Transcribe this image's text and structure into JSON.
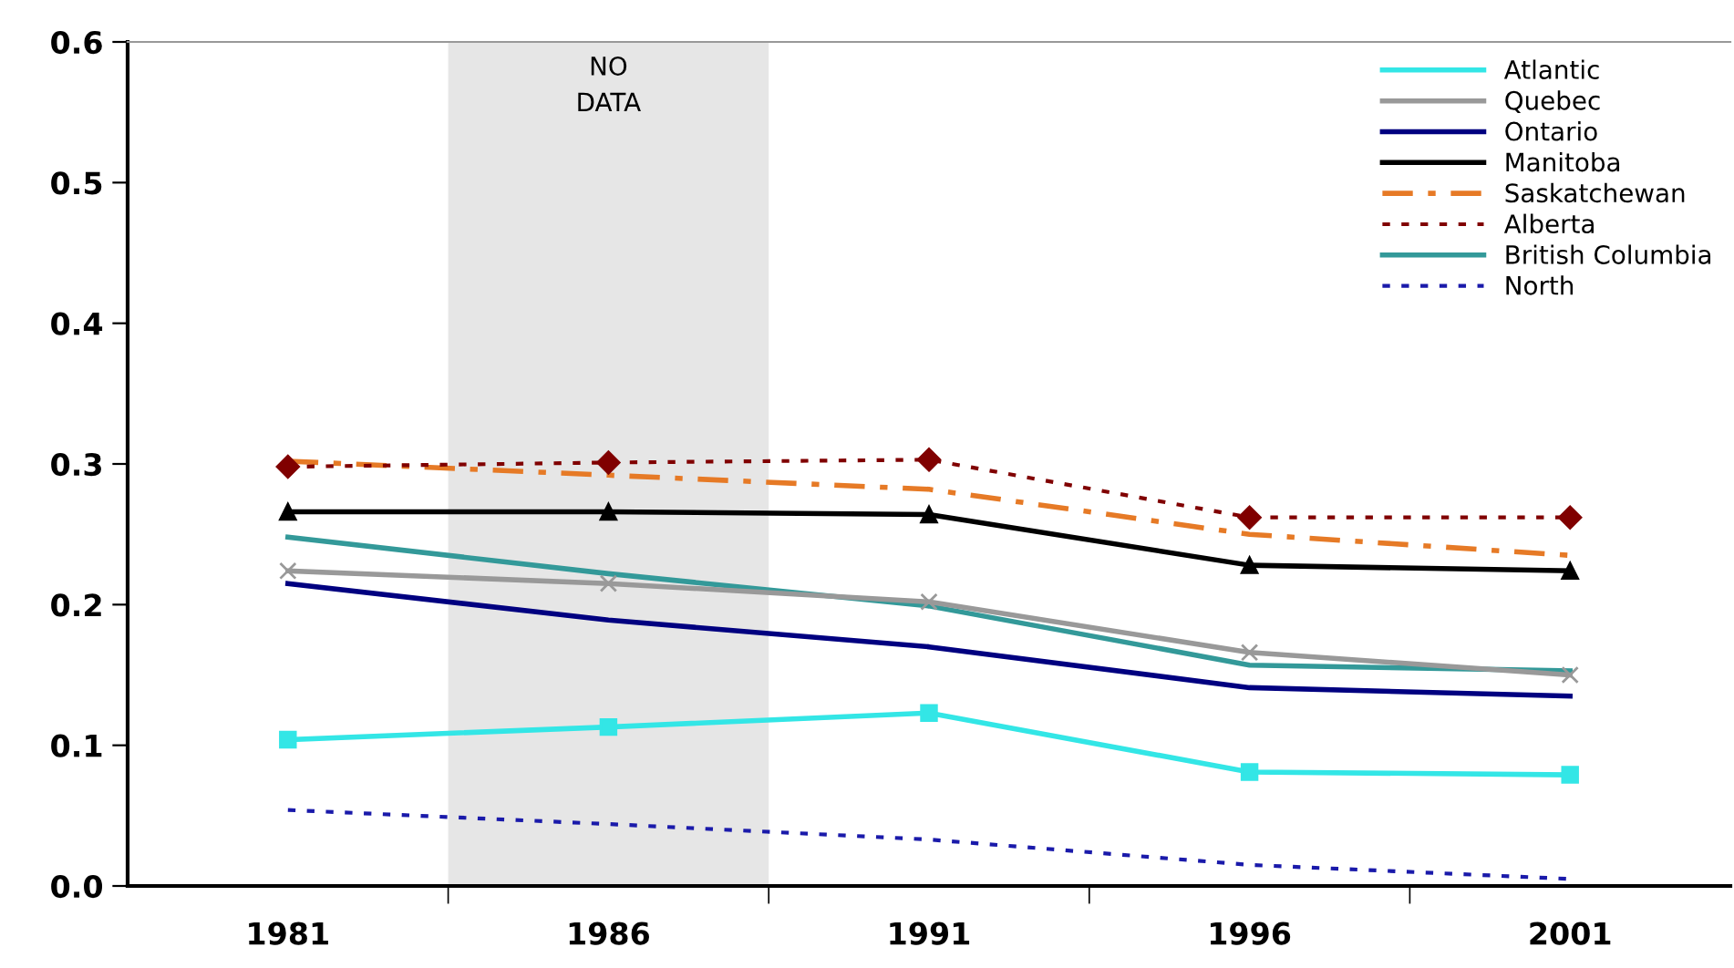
{
  "chart_data": {
    "type": "line",
    "x": [
      1981,
      1986,
      1991,
      1996,
      2001
    ],
    "xlim": [
      1978.5,
      2003.5
    ],
    "xticks": [
      {
        "value": 1981,
        "label": "1981"
      },
      {
        "value": 1983.5,
        "label": null
      },
      {
        "value": 1986,
        "label": "1986"
      },
      {
        "value": 1988.5,
        "label": null
      },
      {
        "value": 1991,
        "label": "1991"
      },
      {
        "value": 1993.5,
        "label": null
      },
      {
        "value": 1996,
        "label": "1996"
      },
      {
        "value": 1998.5,
        "label": null
      },
      {
        "value": 2001,
        "label": "2001"
      }
    ],
    "ylim": [
      0,
      0.6
    ],
    "yticks": [
      {
        "value": 0,
        "label": "0.0"
      },
      {
        "value": 0.1,
        "label": "0.1"
      },
      {
        "value": 0.2,
        "label": "0.2"
      },
      {
        "value": 0.3,
        "label": "0.3"
      },
      {
        "value": 0.4,
        "label": "0.4"
      },
      {
        "value": 0.5,
        "label": "0.5"
      },
      {
        "value": 0.6,
        "label": "0.6"
      }
    ],
    "grid": false,
    "legend": "top right",
    "bands": [
      {
        "axis": "x",
        "from": 1983.5,
        "to": 1988.5,
        "label": "NO\nDATA",
        "color": "#e6e6e6"
      }
    ],
    "series": [
      {
        "name": "Atlantic",
        "color": "#33e6e6",
        "marker": "square",
        "line_style": "solid",
        "values": [
          0.104,
          0.113,
          0.123,
          0.081,
          0.079
        ]
      },
      {
        "name": "Quebec",
        "color": "#999999",
        "marker": "cross",
        "line_style": "solid",
        "values": [
          0.224,
          0.215,
          0.202,
          0.166,
          0.15
        ]
      },
      {
        "name": "Ontario",
        "color": "#000080",
        "marker": "none",
        "line_style": "solid",
        "values": [
          0.215,
          0.189,
          0.17,
          0.141,
          0.135
        ]
      },
      {
        "name": "Manitoba",
        "color": "#000000",
        "marker": "triangle",
        "line_style": "solid",
        "values": [
          0.266,
          0.266,
          0.264,
          0.228,
          0.224
        ]
      },
      {
        "name": "Saskatchewan",
        "color": "#e67a26",
        "marker": "none",
        "line_style": "dashed",
        "values": [
          0.302,
          0.292,
          0.282,
          0.25,
          0.235
        ]
      },
      {
        "name": "Alberta",
        "color": "#800000",
        "marker": "diamond",
        "line_style": "dotted",
        "values": [
          0.298,
          0.301,
          0.303,
          0.262,
          0.262
        ]
      },
      {
        "name": "British Columbia",
        "color": "#339999",
        "marker": "none",
        "line_style": "solid",
        "values": [
          0.248,
          0.222,
          0.199,
          0.157,
          0.153
        ]
      },
      {
        "name": "North",
        "color": "#1a1aaa",
        "marker": "none",
        "line_style": "dotted",
        "values": [
          0.054,
          0.044,
          0.033,
          0.015,
          0.005
        ]
      }
    ]
  }
}
